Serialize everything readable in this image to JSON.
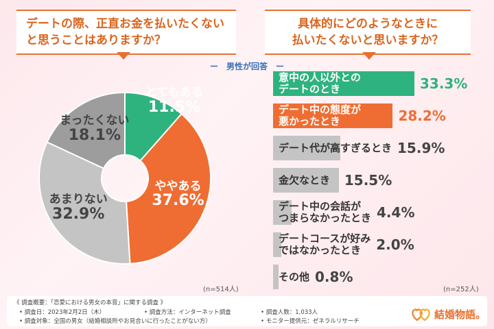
{
  "left_title": {
    "line1": "デートの際、正直お金を払いたくない",
    "line2": "と思うことはありますか？"
  },
  "right_title": {
    "line1": "具体的にどのようなときに",
    "line2": "払いたくないと思いますか？"
  },
  "subtitle": "ー　男性が回答　ー",
  "n_left": "(n=514人)",
  "n_right": "(n=252人)",
  "chart_data": [
    {
      "type": "pie",
      "categories": [
        "とてもある",
        "ややある",
        "あまりない",
        "まったくない"
      ],
      "values": [
        11.5,
        37.6,
        32.9,
        18.1
      ],
      "labels": [
        "11.5%",
        "37.6%",
        "32.9%",
        "18.1%"
      ],
      "colors": [
        "#2eb37f",
        "#ef6d32",
        "#c4c4c4",
        "#9d9d9d"
      ],
      "donut": true,
      "n_note": "(n=514人)"
    },
    {
      "type": "bar",
      "orientation": "horizontal",
      "categories": [
        "意中の人以外とのデートのとき",
        "デート中の態度が悪かったとき",
        "デート代が高すぎるとき",
        "金欠なとき",
        "デート中の会話がつまらなかったとき",
        "デートコースが好みではなかったとき",
        "その他"
      ],
      "category_lines": [
        [
          "意中の人以外との",
          "デートのとき"
        ],
        [
          "デート中の態度が",
          "悪かったとき"
        ],
        [
          "デート代が高すぎるとき"
        ],
        [
          "金欠なとき"
        ],
        [
          "デート中の会話が",
          "つまらなかったとき"
        ],
        [
          "デートコースが好み",
          "ではなかったとき"
        ],
        [
          "その他"
        ]
      ],
      "values": [
        33.3,
        28.2,
        15.9,
        15.5,
        4.4,
        2.0,
        0.8
      ],
      "labels": [
        "33.3%",
        "28.2%",
        "15.9%",
        "15.5%",
        "4.4%",
        "2.0%",
        "0.8%"
      ],
      "colors": [
        "#2eb37f",
        "#ef6d32",
        "#c4c4c4",
        "#c4c4c4",
        "#c4c4c4",
        "#c4c4c4",
        "#c4c4c4"
      ],
      "n_note": "(n=252人)"
    }
  ],
  "footer": {
    "summary": "《 調査概要：「恋愛における男女の本音」に関する調査 》",
    "date": "• 調査日：2023年2月2日（木）",
    "method": "• 調査方法：インターネット調査",
    "people": "• 調査人数：1,033人",
    "target": "• 調査対象：全国の男女（結婚相談所やお見合いに行ったことがない方）",
    "monitor": "• モニター提供元：ゼネラルリサーチ"
  },
  "logo": {
    "text": "結婚物語。",
    "accent": "#e8702f"
  }
}
